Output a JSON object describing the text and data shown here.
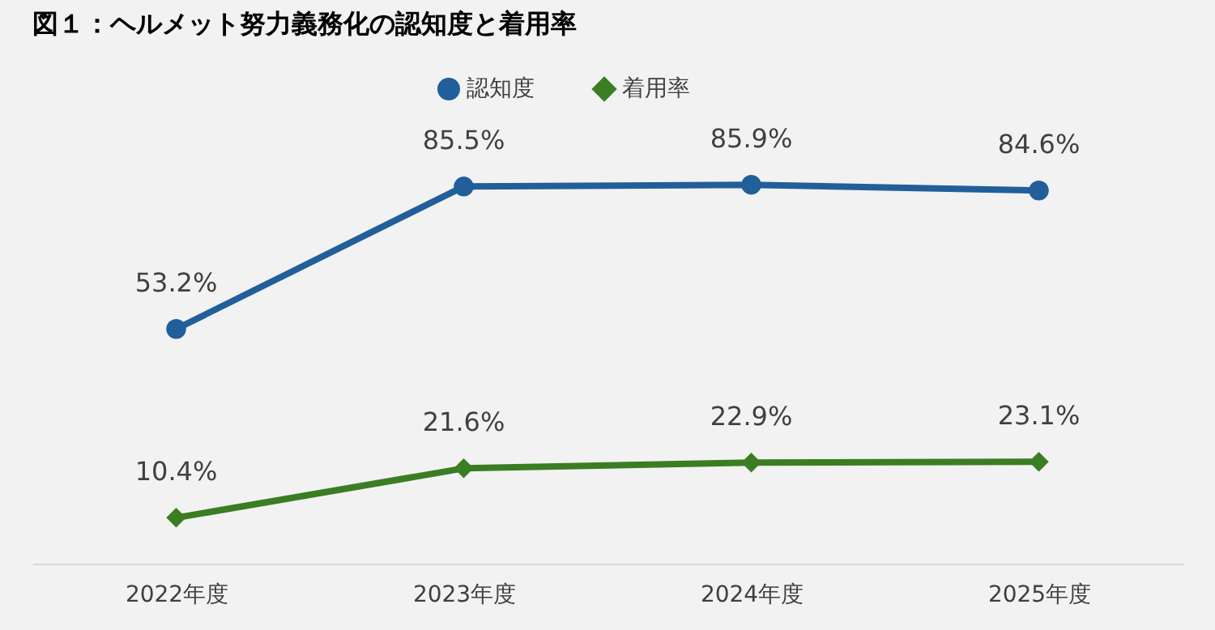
{
  "chart_data": {
    "type": "line",
    "title": "図１：ヘルメット努力義務化の認知度と着用率",
    "categories": [
      "2022年度",
      "2023年度",
      "2024年度",
      "2025年度"
    ],
    "series": [
      {
        "name": "認知度",
        "color": "#215f9a",
        "marker": "circle",
        "values": [
          53.2,
          85.5,
          85.9,
          84.6
        ],
        "value_labels": [
          "53.2%",
          "85.5%",
          "85.9%",
          "84.6%"
        ]
      },
      {
        "name": "着用率",
        "color": "#3b7d23",
        "marker": "diamond",
        "values": [
          10.4,
          21.6,
          22.9,
          23.1
        ],
        "value_labels": [
          "10.4%",
          "21.6%",
          "22.9%",
          "23.1%"
        ]
      }
    ],
    "tick_labels": "x",
    "legend": "top",
    "grid": false,
    "line_style": "solid"
  }
}
